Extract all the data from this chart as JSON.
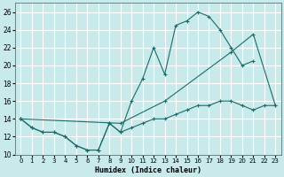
{
  "title": "",
  "xlabel": "Humidex (Indice chaleur)",
  "ylabel": "",
  "bg_color": "#c8eaea",
  "grid_color": "#ffffff",
  "line_color": "#1a6b6b",
  "xlim": [
    -0.5,
    23.5
  ],
  "ylim": [
    10,
    27
  ],
  "yticks": [
    10,
    12,
    14,
    16,
    18,
    20,
    22,
    24,
    26
  ],
  "xticks": [
    0,
    1,
    2,
    3,
    4,
    5,
    6,
    7,
    8,
    9,
    10,
    11,
    12,
    13,
    14,
    15,
    16,
    17,
    18,
    19,
    20,
    21,
    22,
    23
  ],
  "series": [
    {
      "x": [
        0,
        1,
        2,
        3,
        4,
        5,
        6,
        7,
        8,
        9,
        10,
        11,
        12,
        13,
        14,
        15,
        16,
        17,
        18,
        19,
        20,
        21,
        22,
        23
      ],
      "y": [
        14,
        13,
        12.5,
        12.5,
        12,
        11,
        10.5,
        10.5,
        13.5,
        12.5,
        13,
        13.5,
        14,
        14,
        14.5,
        15,
        15.5,
        15.5,
        16,
        16,
        15.5,
        15,
        15.5,
        15.5
      ]
    },
    {
      "x": [
        0,
        1,
        2,
        3,
        4,
        5,
        6,
        7,
        8,
        9,
        10,
        11,
        12,
        13,
        14,
        15,
        16,
        17,
        18,
        19,
        20,
        21
      ],
      "y": [
        14,
        13,
        12.5,
        12.5,
        12,
        11,
        10.5,
        10.5,
        13.5,
        12.5,
        16,
        18.5,
        22,
        19,
        24.5,
        25,
        26,
        25.5,
        24,
        22,
        20,
        20.5
      ]
    },
    {
      "x": [
        0,
        9,
        13,
        19,
        21,
        23
      ],
      "y": [
        14,
        13.5,
        16,
        21.5,
        23.5,
        15.5
      ]
    }
  ]
}
